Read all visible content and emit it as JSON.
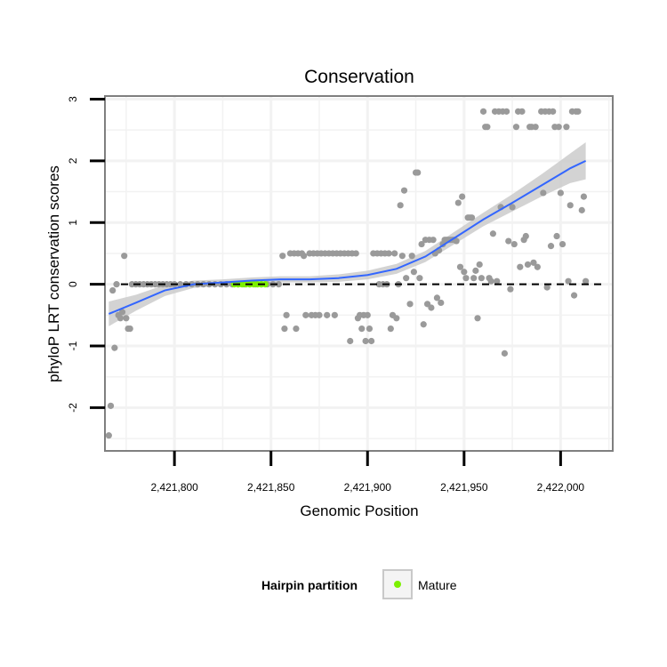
{
  "chart_data": {
    "type": "scatter",
    "title": "Conservation",
    "xlabel": "Genomic Position",
    "ylabel": "phyloP LRT conservation scores",
    "xlim": [
      2421764,
      2422027
    ],
    "ylim": [
      -2.7,
      3.05
    ],
    "x_ticks": [
      2421800,
      2421850,
      2421900,
      2421950,
      2422000
    ],
    "x_tick_labels": [
      "2,421,800",
      "2,421,850",
      "2,421,900",
      "2,421,950",
      "2,422,000"
    ],
    "y_ticks": [
      -2,
      -1,
      0,
      1,
      2,
      3
    ],
    "y_tick_labels": [
      "-2",
      "-1",
      "0",
      "1",
      "2",
      "3"
    ],
    "reference_line": 0,
    "colors": {
      "points": "#9a9a9a",
      "mature": "#7cf000",
      "smooth": "#3366ff",
      "ribbon": "#c8c8c8",
      "panel_border": "#7f7f7f",
      "grid": "#f2f2f2"
    },
    "legend": {
      "title": "Hairpin partition",
      "entries": [
        "Mature"
      ],
      "position": "bottom"
    },
    "series": [
      {
        "name": "Conservation scores",
        "points": [
          [
            2421766,
            -2.45
          ],
          [
            2421767,
            -1.97
          ],
          [
            2421768,
            -0.1
          ],
          [
            2421769,
            -1.03
          ],
          [
            2421770,
            0
          ],
          [
            2421771,
            -0.5
          ],
          [
            2421772,
            -0.55
          ],
          [
            2421773,
            -0.45
          ],
          [
            2421774,
            0.46
          ],
          [
            2421775,
            -0.55
          ],
          [
            2421776,
            -0.72
          ],
          [
            2421777,
            -0.72
          ],
          [
            2421778,
            0
          ],
          [
            2421780,
            0
          ],
          [
            2421782,
            0
          ],
          [
            2421784,
            0
          ],
          [
            2421786,
            0
          ],
          [
            2421788,
            0
          ],
          [
            2421790,
            0
          ],
          [
            2421792,
            0
          ],
          [
            2421794,
            0
          ],
          [
            2421796,
            0
          ],
          [
            2421798,
            0
          ],
          [
            2421800,
            0
          ],
          [
            2421803,
            0
          ],
          [
            2421806,
            0
          ],
          [
            2421809,
            0
          ],
          [
            2421812,
            0
          ],
          [
            2421815,
            0
          ],
          [
            2421818,
            0
          ],
          [
            2421821,
            0
          ],
          [
            2421824,
            0
          ],
          [
            2421827,
            0
          ],
          [
            2421830,
            0
          ],
          [
            2421833,
            0
          ],
          [
            2421836,
            0
          ],
          [
            2421839,
            0
          ],
          [
            2421842,
            0
          ],
          [
            2421845,
            0
          ],
          [
            2421848,
            0
          ],
          [
            2421851,
            0
          ],
          [
            2421854,
            0
          ],
          [
            2421856,
            0.46
          ],
          [
            2421857,
            -0.72
          ],
          [
            2421858,
            -0.5
          ],
          [
            2421860,
            0.5
          ],
          [
            2421862,
            0.5
          ],
          [
            2421863,
            -0.72
          ],
          [
            2421864,
            0.5
          ],
          [
            2421866,
            0.5
          ],
          [
            2421867,
            0.46
          ],
          [
            2421868,
            -0.5
          ],
          [
            2421870,
            0.5
          ],
          [
            2421871,
            -0.5
          ],
          [
            2421872,
            0.5
          ],
          [
            2421873,
            -0.5
          ],
          [
            2421874,
            0.5
          ],
          [
            2421875,
            -0.5
          ],
          [
            2421876,
            0.5
          ],
          [
            2421878,
            0.5
          ],
          [
            2421879,
            -0.5
          ],
          [
            2421880,
            0.5
          ],
          [
            2421882,
            0.5
          ],
          [
            2421883,
            -0.5
          ],
          [
            2421884,
            0.5
          ],
          [
            2421886,
            0.5
          ],
          [
            2421888,
            0.5
          ],
          [
            2421890,
            0.5
          ],
          [
            2421891,
            -0.92
          ],
          [
            2421892,
            0.5
          ],
          [
            2421894,
            0.5
          ],
          [
            2421895,
            -0.55
          ],
          [
            2421896,
            -0.5
          ],
          [
            2421897,
            -0.72
          ],
          [
            2421898,
            -0.5
          ],
          [
            2421899,
            -0.92
          ],
          [
            2421900,
            -0.5
          ],
          [
            2421901,
            -0.72
          ],
          [
            2421902,
            -0.92
          ],
          [
            2421903,
            0.5
          ],
          [
            2421905,
            0.5
          ],
          [
            2421906,
            0
          ],
          [
            2421907,
            0.5
          ],
          [
            2421908,
            0
          ],
          [
            2421909,
            0.5
          ],
          [
            2421910,
            0
          ],
          [
            2421911,
            0.5
          ],
          [
            2421912,
            -0.72
          ],
          [
            2421913,
            -0.5
          ],
          [
            2421914,
            0.5
          ],
          [
            2421915,
            -0.55
          ],
          [
            2421916,
            0
          ],
          [
            2421917,
            1.28
          ],
          [
            2421918,
            0.46
          ],
          [
            2421919,
            1.52
          ],
          [
            2421920,
            0.1
          ],
          [
            2421922,
            -0.32
          ],
          [
            2421923,
            0.46
          ],
          [
            2421924,
            0.2
          ],
          [
            2421925,
            1.81
          ],
          [
            2421926,
            1.81
          ],
          [
            2421927,
            0.1
          ],
          [
            2421928,
            0.65
          ],
          [
            2421929,
            -0.65
          ],
          [
            2421930,
            0.72
          ],
          [
            2421931,
            -0.32
          ],
          [
            2421932,
            0.72
          ],
          [
            2421933,
            -0.38
          ],
          [
            2421934,
            0.72
          ],
          [
            2421935,
            0.5
          ],
          [
            2421936,
            -0.22
          ],
          [
            2421937,
            0.55
          ],
          [
            2421938,
            -0.3
          ],
          [
            2421939,
            0.65
          ],
          [
            2421940,
            0.72
          ],
          [
            2421941,
            0.72
          ],
          [
            2421942,
            0.72
          ],
          [
            2421943,
            0.72
          ],
          [
            2421944,
            0.72
          ],
          [
            2421945,
            0.72
          ],
          [
            2421946,
            0.7
          ],
          [
            2421947,
            1.32
          ],
          [
            2421948,
            0.28
          ],
          [
            2421949,
            1.42
          ],
          [
            2421950,
            0.2
          ],
          [
            2421951,
            0.1
          ],
          [
            2421952,
            1.08
          ],
          [
            2421953,
            1.08
          ],
          [
            2421954,
            1.08
          ],
          [
            2421955,
            0.1
          ],
          [
            2421956,
            0.22
          ],
          [
            2421957,
            -0.55
          ],
          [
            2421958,
            0.32
          ],
          [
            2421959,
            0.1
          ],
          [
            2421960,
            2.8
          ],
          [
            2421961,
            2.55
          ],
          [
            2421962,
            2.55
          ],
          [
            2421963,
            0.1
          ],
          [
            2421964,
            0.05
          ],
          [
            2421965,
            0.82
          ],
          [
            2421966,
            2.8
          ],
          [
            2421967,
            0.05
          ],
          [
            2421968,
            2.8
          ],
          [
            2421969,
            1.25
          ],
          [
            2421970,
            2.8
          ],
          [
            2421971,
            -1.12
          ],
          [
            2421972,
            2.8
          ],
          [
            2421973,
            0.7
          ],
          [
            2421974,
            -0.08
          ],
          [
            2421975,
            1.25
          ],
          [
            2421976,
            0.65
          ],
          [
            2421977,
            2.55
          ],
          [
            2421978,
            2.8
          ],
          [
            2421979,
            0.28
          ],
          [
            2421980,
            2.8
          ],
          [
            2421981,
            0.72
          ],
          [
            2421982,
            0.78
          ],
          [
            2421983,
            0.32
          ],
          [
            2421984,
            2.55
          ],
          [
            2421985,
            2.55
          ],
          [
            2421986,
            0.35
          ],
          [
            2421987,
            2.55
          ],
          [
            2421988,
            0.28
          ],
          [
            2421990,
            2.8
          ],
          [
            2421991,
            1.48
          ],
          [
            2421992,
            2.8
          ],
          [
            2421993,
            -0.05
          ],
          [
            2421994,
            2.8
          ],
          [
            2421995,
            0.62
          ],
          [
            2421996,
            2.8
          ],
          [
            2421997,
            2.55
          ],
          [
            2421998,
            0.78
          ],
          [
            2421999,
            2.55
          ],
          [
            2422000,
            1.48
          ],
          [
            2422001,
            0.65
          ],
          [
            2422003,
            2.55
          ],
          [
            2422004,
            0.05
          ],
          [
            2422005,
            1.28
          ],
          [
            2422006,
            2.8
          ],
          [
            2422007,
            -0.18
          ],
          [
            2422008,
            2.8
          ],
          [
            2422009,
            2.8
          ],
          [
            2422011,
            1.2
          ],
          [
            2422012,
            1.42
          ],
          [
            2422013,
            0.05
          ]
        ]
      },
      {
        "name": "Mature",
        "points": [
          [
            2421831,
            0
          ],
          [
            2421833,
            0
          ],
          [
            2421835,
            0
          ],
          [
            2421837,
            0
          ],
          [
            2421839,
            0
          ],
          [
            2421841,
            0
          ],
          [
            2421843,
            0
          ],
          [
            2421845,
            0
          ],
          [
            2421847,
            0
          ]
        ]
      }
    ],
    "smooth": {
      "method": "loess",
      "x": [
        2421766,
        2421780,
        2421795,
        2421810,
        2421825,
        2421840,
        2421855,
        2421870,
        2421885,
        2421900,
        2421915,
        2421930,
        2421945,
        2421960,
        2421975,
        2421990,
        2422005,
        2422013
      ],
      "y": [
        -0.48,
        -0.3,
        -0.1,
        0.0,
        0.03,
        0.06,
        0.08,
        0.08,
        0.1,
        0.15,
        0.25,
        0.45,
        0.75,
        1.05,
        1.32,
        1.6,
        1.88,
        2.0
      ],
      "ci": [
        0.2,
        0.13,
        0.09,
        0.06,
        0.05,
        0.05,
        0.05,
        0.05,
        0.06,
        0.07,
        0.08,
        0.09,
        0.1,
        0.11,
        0.14,
        0.18,
        0.24,
        0.3
      ]
    }
  }
}
